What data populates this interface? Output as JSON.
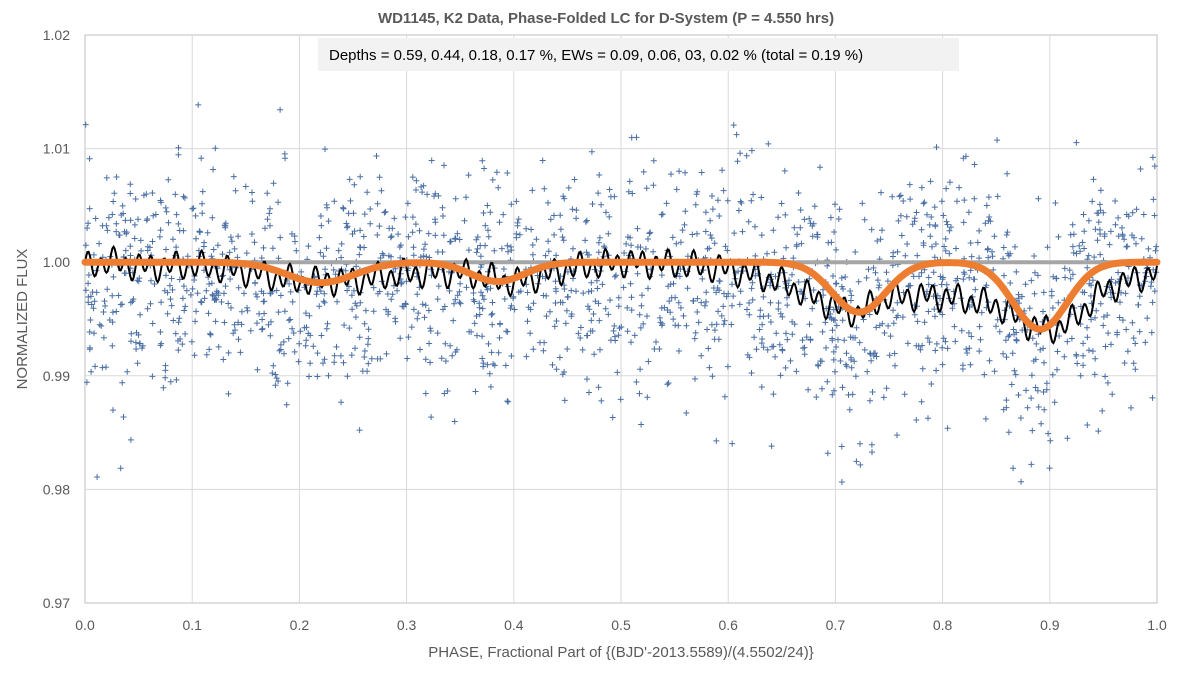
{
  "chart_data": {
    "type": "scatter",
    "title": "WD1145, K2 Data, Phase-Folded LC for D-System (P = 4.550 hrs)",
    "annotation": "Depths = 0.59, 0.44, 0.18, 0.17 %, EWs = 0.09, 0.06, 03, 0.02 % (total = 0.19 %)",
    "xlabel": "PHASE, Fractional Part of {(BJD'-2013.5589)/(4.5502/24)}",
    "ylabel": "NORMALIZED FLUX",
    "xlim": [
      0.0,
      1.0
    ],
    "ylim": [
      0.97,
      1.02
    ],
    "x_ticks": [
      "0.0",
      "0.1",
      "0.2",
      "0.3",
      "0.4",
      "0.5",
      "0.6",
      "0.7",
      "0.8",
      "0.9",
      "1.0"
    ],
    "y_ticks": [
      "0.97",
      "0.98",
      "0.99",
      "1.00",
      "1.01",
      "1.02"
    ],
    "grid": true,
    "colors": {
      "points": "#4a6fa5",
      "running_average": "#000000",
      "model": "#ed7d31",
      "baseline": "#a6a6a6",
      "grid": "#d9d9d9",
      "annotation_box": "#f2f2f2"
    },
    "series": [
      {
        "kind": "scatter-plus-markers",
        "point_count": 1900,
        "approx_mean_flux": 0.998,
        "approx_flux_scatter": 0.005
      },
      {
        "kind": "running-average-line",
        "x": [
          0.0,
          0.02,
          0.05,
          0.1,
          0.15,
          0.2,
          0.25,
          0.3,
          0.35,
          0.4,
          0.45,
          0.5,
          0.55,
          0.6,
          0.65,
          0.7,
          0.72,
          0.75,
          0.8,
          0.85,
          0.88,
          0.9,
          0.92,
          0.95,
          1.0
        ],
        "y": [
          0.9995,
          1.0001,
          0.9996,
          0.9997,
          0.9992,
          0.9983,
          0.9984,
          0.999,
          0.9991,
          0.9982,
          0.9994,
          1.0,
          0.9998,
          0.9994,
          0.9982,
          0.996,
          0.9955,
          0.997,
          0.997,
          0.9962,
          0.9945,
          0.994,
          0.9948,
          0.9975,
          0.9992
        ]
      },
      {
        "kind": "model-line",
        "dips": [
          {
            "center": 0.891,
            "depth_percent": 0.59,
            "width": 0.04
          },
          {
            "center": 0.722,
            "depth_percent": 0.44,
            "width": 0.04
          },
          {
            "center": 0.22,
            "depth_percent": 0.18,
            "width": 0.05
          },
          {
            "center": 0.385,
            "depth_percent": 0.17,
            "width": 0.04
          }
        ]
      },
      {
        "kind": "baseline",
        "y": 1.0
      }
    ]
  }
}
